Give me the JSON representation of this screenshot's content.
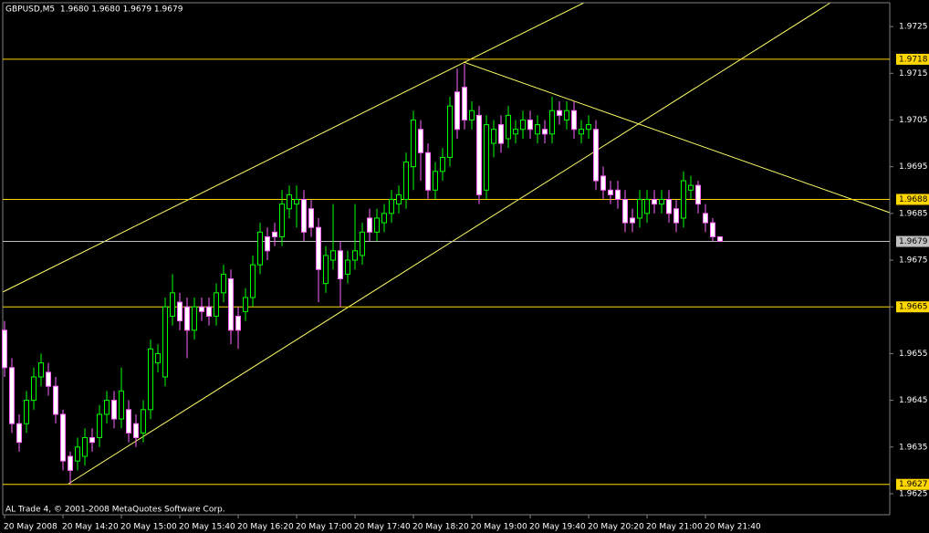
{
  "chart_data": {
    "type": "candlestick",
    "title": "GBPUSD,M5  1.9680 1.9680 1.9679 1.9679",
    "footer": "AL Trade 4, © 2001-2008 MetaQuotes Software Corp.",
    "categories": [
      "20 May 2008",
      null,
      null,
      null,
      null,
      null,
      null,
      null,
      "20 May 14:20",
      null,
      null,
      null,
      null,
      null,
      null,
      null,
      "20 May 15:00",
      null,
      null,
      null,
      null,
      null,
      null,
      null,
      "20 May 15:40",
      null,
      null,
      null,
      null,
      null,
      null,
      null,
      "20 May 16:20",
      null,
      null,
      null,
      null,
      null,
      null,
      null,
      "20 May 17:00",
      null,
      null,
      null,
      null,
      null,
      null,
      null,
      "20 May 17:40",
      null,
      null,
      null,
      null,
      null,
      null,
      null,
      "20 May 18:20",
      null,
      null,
      null,
      null,
      null,
      null,
      null,
      "20 May 19:00",
      null,
      null,
      null,
      null,
      null,
      null,
      null,
      "20 May 19:40",
      null,
      null,
      null,
      null,
      null,
      null,
      null,
      "20 May 20:20",
      null,
      null,
      null,
      null,
      null,
      null,
      null,
      "20 May 21:00",
      null,
      null,
      null,
      null,
      null,
      null,
      null,
      "20 May 21:40",
      null,
      null
    ],
    "open": [
      1.966,
      1.9652,
      1.964,
      1.964,
      1.9645,
      1.965,
      1.9651,
      1.9648,
      1.9642,
      1.9633,
      1.9632,
      1.9633,
      1.9637,
      1.9637,
      1.9642,
      1.9645,
      1.9641,
      1.9643,
      1.964,
      1.9638,
      1.9643,
      1.9653,
      1.965,
      1.9663,
      1.9666,
      1.9665,
      1.966,
      1.9665,
      1.9665,
      1.9663,
      1.9668,
      1.9671,
      1.9663,
      1.9664,
      1.9667,
      1.9674,
      1.968,
      1.9681,
      1.968,
      1.9686,
      1.9687,
      1.9688,
      1.9686,
      1.9682,
      1.967,
      1.9675,
      1.9677,
      1.9672,
      1.9675,
      1.9676,
      1.9684,
      1.9681,
      1.9683,
      1.9685,
      1.9687,
      1.9688,
      1.9695,
      1.9703,
      1.9698,
      1.969,
      1.9694,
      1.9697,
      1.9711,
      1.9712,
      1.9705,
      1.9706,
      1.969,
      1.97,
      1.9704,
      1.9701,
      1.9702,
      1.9703,
      1.9705,
      1.9702,
      1.9703,
      1.9702,
      1.9707,
      1.9705,
      1.9707,
      1.9702,
      1.9703,
      1.9703,
      1.9693,
      1.969,
      1.969,
      1.9688,
      1.9684,
      1.9684,
      1.9685,
      1.9688,
      1.9687,
      1.9688,
      1.9686,
      1.9684,
      1.969,
      1.9691,
      1.9685,
      1.9683,
      1.968
    ],
    "high": [
      1.9662,
      1.9654,
      1.9642,
      1.9647,
      1.9652,
      1.9655,
      1.9653,
      1.965,
      1.9643,
      1.9634,
      1.9637,
      1.9639,
      1.9639,
      1.9644,
      1.9647,
      1.9647,
      1.9652,
      1.9645,
      1.9642,
      1.9645,
      1.9658,
      1.9657,
      1.9667,
      1.9672,
      1.9668,
      1.9667,
      1.9667,
      1.9667,
      1.9667,
      1.967,
      1.9674,
      1.9673,
      1.9665,
      1.9669,
      1.9676,
      1.9683,
      1.9682,
      1.9683,
      1.969,
      1.9691,
      1.9691,
      1.969,
      1.9688,
      1.9684,
      1.9678,
      1.9687,
      1.9679,
      1.9677,
      1.9687,
      1.9683,
      1.9686,
      1.9686,
      1.9687,
      1.969,
      1.9691,
      1.9698,
      1.9707,
      1.9705,
      1.97,
      1.9696,
      1.9699,
      1.971,
      1.9716,
      1.9717,
      1.9709,
      1.9708,
      1.9706,
      1.9705,
      1.9706,
      1.9708,
      1.9705,
      1.9707,
      1.9707,
      1.9706,
      1.9705,
      1.971,
      1.9709,
      1.9709,
      1.9709,
      1.9705,
      1.9706,
      1.9705,
      1.9695,
      1.9692,
      1.9692,
      1.969,
      1.9686,
      1.969,
      1.969,
      1.969,
      1.969,
      1.969,
      1.9688,
      1.9694,
      1.9693,
      1.9692,
      1.9687,
      1.9684,
      1.968
    ],
    "low": [
      1.965,
      1.9638,
      1.9634,
      1.9638,
      1.9643,
      1.9648,
      1.9646,
      1.964,
      1.963,
      1.9627,
      1.963,
      1.9631,
      1.9634,
      1.9635,
      1.964,
      1.9639,
      1.9639,
      1.9636,
      1.9635,
      1.9636,
      1.9641,
      1.9651,
      1.9648,
      1.9661,
      1.966,
      1.9654,
      1.9658,
      1.9662,
      1.9661,
      1.9661,
      1.9666,
      1.9657,
      1.9656,
      1.9662,
      1.9665,
      1.9672,
      1.9675,
      1.9678,
      1.9678,
      1.9684,
      1.9682,
      1.9679,
      1.968,
      1.9666,
      1.9668,
      1.9673,
      1.9665,
      1.967,
      1.9673,
      1.9674,
      1.9679,
      1.9679,
      1.9681,
      1.9683,
      1.9685,
      1.9686,
      1.969,
      1.9692,
      1.9688,
      1.9688,
      1.9692,
      1.9695,
      1.9701,
      1.9703,
      1.9703,
      1.9687,
      1.9688,
      1.9697,
      1.9698,
      1.9699,
      1.97,
      1.9701,
      1.9701,
      1.97,
      1.97,
      1.97,
      1.9704,
      1.9703,
      1.9701,
      1.97,
      1.9701,
      1.969,
      1.9688,
      1.9687,
      1.9686,
      1.9681,
      1.9681,
      1.9682,
      1.9683,
      1.9685,
      1.9685,
      1.9683,
      1.9681,
      1.9682,
      1.9688,
      1.9685,
      1.9681,
      1.9679,
      1.9679
    ],
    "close": [
      1.9652,
      1.964,
      1.9636,
      1.9645,
      1.965,
      1.9653,
      1.9648,
      1.9642,
      1.9632,
      1.963,
      1.9635,
      1.9637,
      1.9636,
      1.9642,
      1.9645,
      1.9641,
      1.9647,
      1.9638,
      1.9637,
      1.9643,
      1.9656,
      1.9655,
      1.9665,
      1.9668,
      1.9662,
      1.966,
      1.9665,
      1.9664,
      1.9663,
      1.9668,
      1.9672,
      1.966,
      1.966,
      1.9667,
      1.9674,
      1.9681,
      1.9677,
      1.968,
      1.9687,
      1.9689,
      1.9688,
      1.9681,
      1.9682,
      1.9673,
      1.9676,
      1.9677,
      1.9671,
      1.9675,
      1.9677,
      1.9681,
      1.9681,
      1.9684,
      1.9685,
      1.9688,
      1.9689,
      1.9696,
      1.9705,
      1.9698,
      1.969,
      1.9694,
      1.9697,
      1.9708,
      1.9703,
      1.9705,
      1.9707,
      1.9689,
      1.9704,
      1.9703,
      1.97,
      1.9706,
      1.9703,
      1.9705,
      1.9703,
      1.9704,
      1.9702,
      1.9707,
      1.9706,
      1.9707,
      1.9703,
      1.9703,
      1.9704,
      1.9692,
      1.969,
      1.9689,
      1.9688,
      1.9683,
      1.9683,
      1.9688,
      1.9688,
      1.9687,
      1.9688,
      1.9685,
      1.9683,
      1.9692,
      1.9691,
      1.9687,
      1.9683,
      1.968,
      1.9679
    ],
    "up_color": "#00ff00",
    "down_color": "#ffffff",
    "down_wick_color": "#ff66ff",
    "ylim": [
      1.96205,
      1.97301
    ],
    "yticks": [
      1.9625,
      1.9635,
      1.9645,
      1.9655,
      1.9665,
      1.9675,
      1.9685,
      1.9695,
      1.9705,
      1.9715,
      1.9725
    ],
    "levels": [
      {
        "value": 1.9718,
        "color": "#ffd700"
      },
      {
        "value": 1.9688,
        "color": "#ffd700"
      },
      {
        "value": 1.9665,
        "color": "#ffd700"
      },
      {
        "value": 1.9627,
        "color": "#ffd700"
      },
      {
        "value": 1.9679,
        "color": "#c0c0c0"
      }
    ]
  }
}
